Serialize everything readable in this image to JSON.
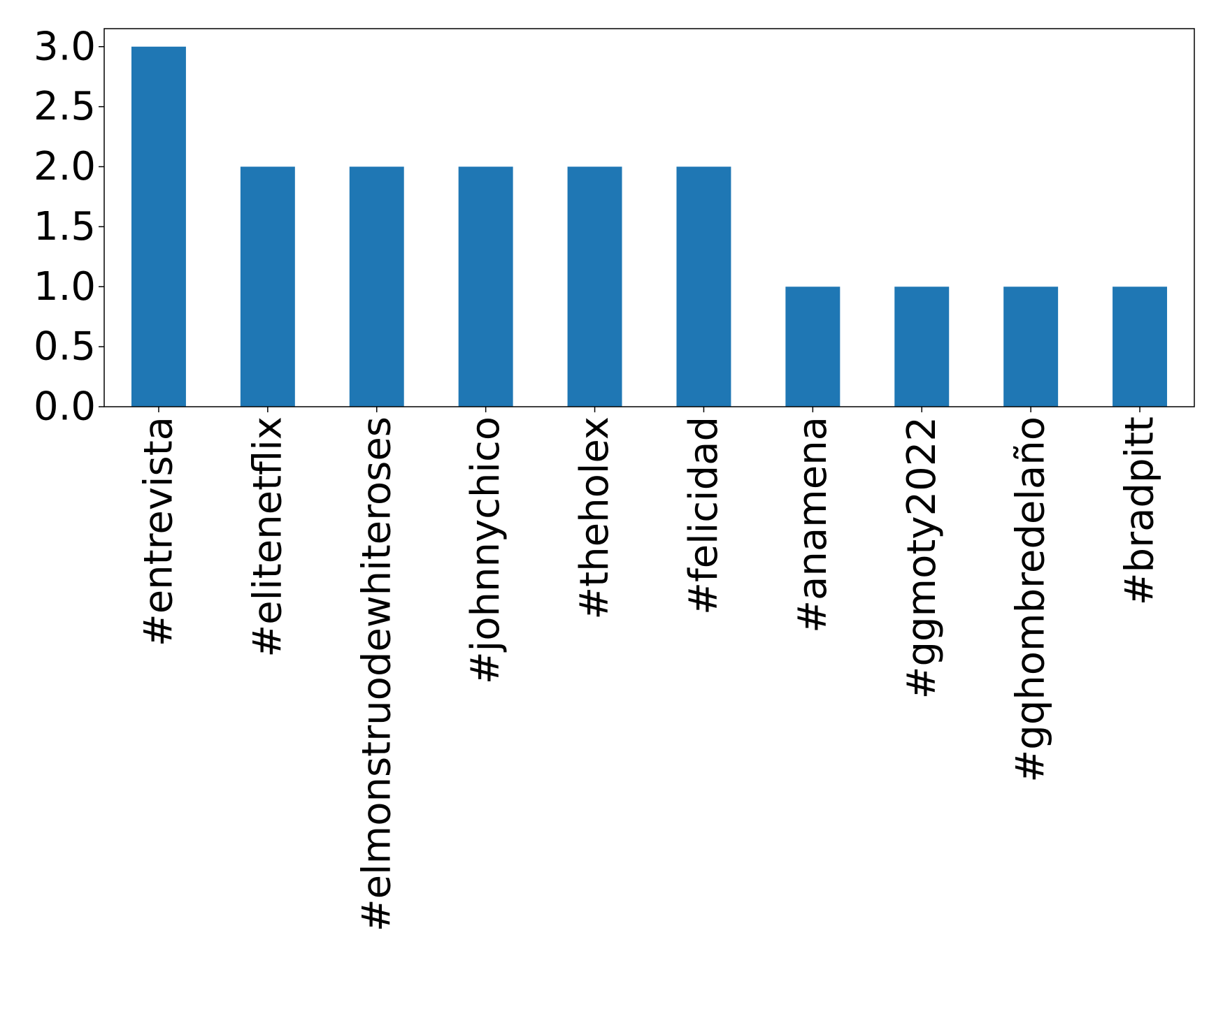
{
  "chart_data": {
    "type": "bar",
    "categories": [
      "#entrevista",
      "#elitenetflix",
      "#elmonstruodewhiteroses",
      "#johnnychico",
      "#theholex",
      "#felicidad",
      "#anamena",
      "#ggmoty2022",
      "#gqhombredelaño",
      "#bradpitt"
    ],
    "values": [
      3,
      2,
      2,
      2,
      2,
      2,
      1,
      1,
      1,
      1
    ],
    "color": "#1f77b4",
    "ylim": [
      0,
      3.15
    ],
    "yticks": [
      {
        "value": 0,
        "label": "0.0"
      },
      {
        "value": 0.5,
        "label": "0.5"
      },
      {
        "value": 1,
        "label": "1.0"
      },
      {
        "value": 1.5,
        "label": "1.5"
      },
      {
        "value": 2,
        "label": "2.0"
      },
      {
        "value": 2.5,
        "label": "2.5"
      },
      {
        "value": 3,
        "label": "3.0"
      }
    ],
    "grid": false
  }
}
